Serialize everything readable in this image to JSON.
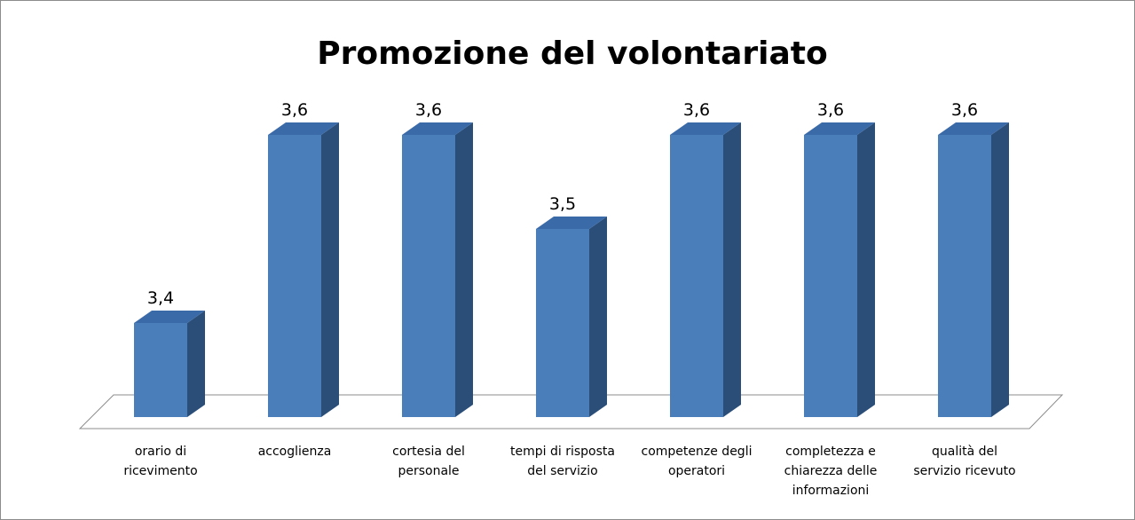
{
  "chart_data": {
    "type": "bar3d",
    "title": "Promozione del volontariato",
    "categories": [
      "orario di ricevimento",
      "accoglienza",
      "cortesia del personale",
      "tempi di risposta del servizio",
      "competenze degli operatori",
      "completezza e chiarezza delle informazioni",
      "qualità del servizio ricevuto"
    ],
    "values": [
      3.4,
      3.6,
      3.6,
      3.5,
      3.6,
      3.6,
      3.6
    ],
    "value_labels": [
      "3,4",
      "3,6",
      "3,6",
      "3,5",
      "3,6",
      "3,6",
      "3,6"
    ],
    "color": "#4a7ebb",
    "ylim": [
      3.3,
      3.6
    ]
  }
}
